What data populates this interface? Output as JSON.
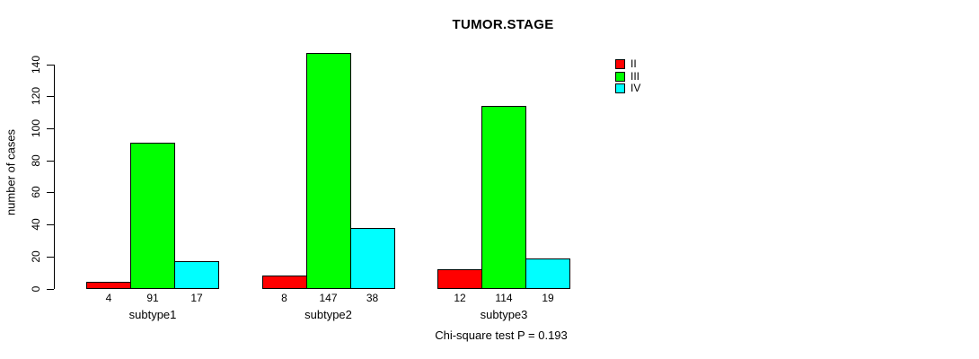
{
  "chart_data": {
    "type": "bar",
    "title": "TUMOR.STAGE",
    "xlabel": "",
    "ylabel": "number of cases",
    "categories": [
      "subtype1",
      "subtype2",
      "subtype3"
    ],
    "series": [
      {
        "name": "II",
        "color": "#ff0000",
        "values": [
          4,
          8,
          12
        ]
      },
      {
        "name": "III",
        "color": "#00ff00",
        "values": [
          91,
          147,
          114
        ]
      },
      {
        "name": "IV",
        "color": "#00ffff",
        "values": [
          17,
          38,
          19
        ]
      }
    ],
    "bar_value_labels": [
      [
        "4",
        "91",
        "17"
      ],
      [
        "8",
        "147",
        "38"
      ],
      [
        "12",
        "114",
        "19"
      ]
    ],
    "ylim": [
      0,
      140
    ],
    "yticks": [
      0,
      20,
      40,
      60,
      80,
      100,
      120,
      140
    ],
    "grid": false,
    "legend_position": "right-outside",
    "legend_entries": [
      "II",
      "III",
      "IV"
    ],
    "annotation": "Chi-square test P = 0.193",
    "bar_border_color": "#000000",
    "background_color": "#ffffff"
  }
}
